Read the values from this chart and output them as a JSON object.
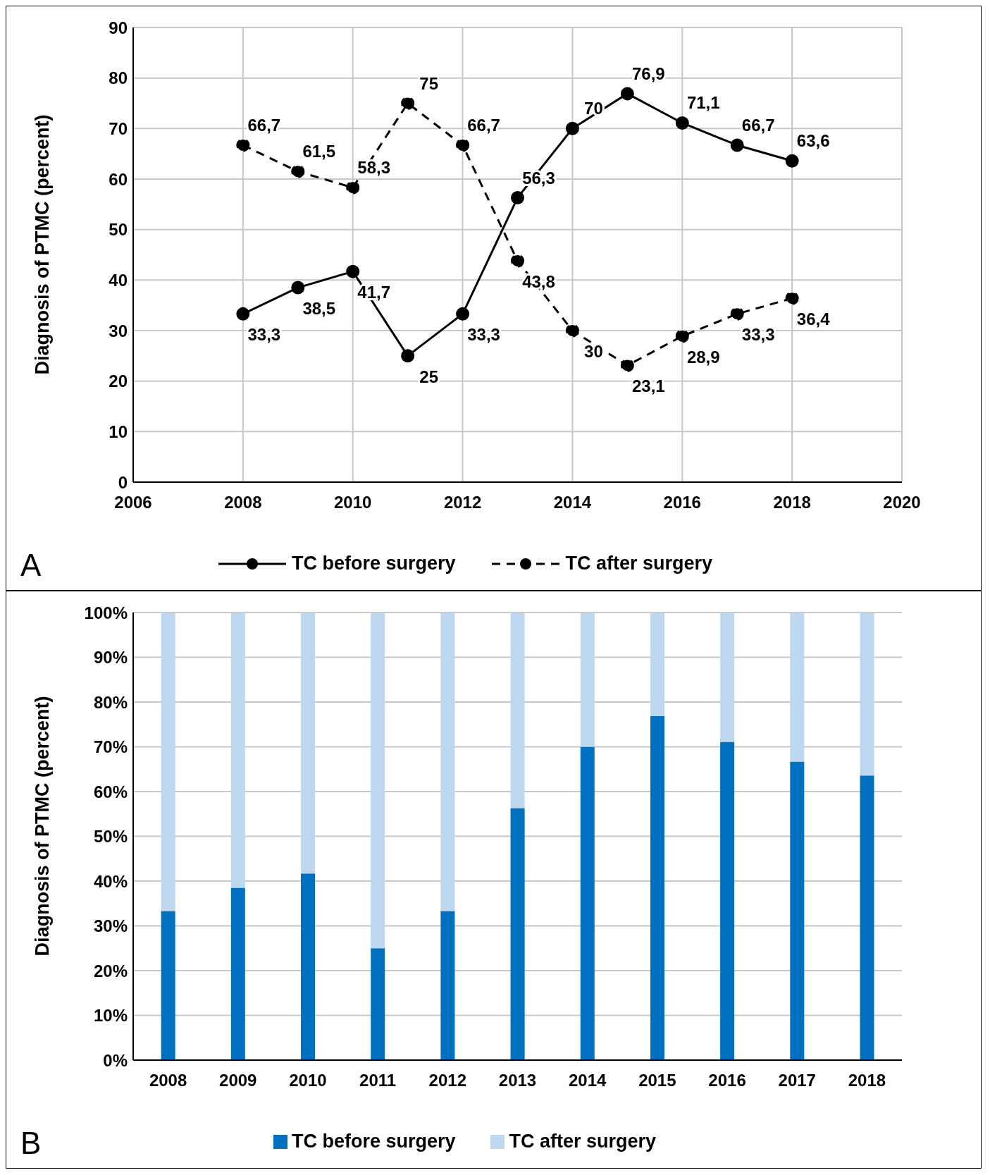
{
  "chart_data": [
    {
      "type": "line",
      "ylabel": "Diagnosis of PTMC (percent)",
      "x": [
        2008,
        2009,
        2010,
        2011,
        2012,
        2013,
        2014,
        2015,
        2016,
        2017,
        2018
      ],
      "xlim": [
        2006,
        2020
      ],
      "xticks": [
        2006,
        2008,
        2010,
        2012,
        2014,
        2016,
        2018,
        2020
      ],
      "ylim": [
        0,
        90
      ],
      "yticks": [
        0,
        10,
        20,
        30,
        40,
        50,
        60,
        70,
        80,
        90
      ],
      "grid": true,
      "legend": "bottom",
      "marker": "circle",
      "annotations": [
        "A"
      ],
      "series": [
        {
          "name": "TC before surgery",
          "color": "#000000",
          "line_style": "solid",
          "values": [
            33.3,
            38.5,
            41.7,
            25,
            33.3,
            56.3,
            70,
            76.9,
            71.1,
            66.7,
            63.6
          ],
          "value_labels": [
            "33,3",
            "38,5",
            "41,7",
            "25",
            "33,3",
            "56,3",
            "70",
            "76,9",
            "71,1",
            "66,7",
            "63,6"
          ]
        },
        {
          "name": "TC after surgery",
          "color": "#000000",
          "line_style": "dashed",
          "values": [
            66.7,
            61.5,
            58.3,
            75,
            66.7,
            43.8,
            30,
            23.1,
            28.9,
            33.3,
            36.4
          ],
          "value_labels": [
            "66,7",
            "61,5",
            "58,3",
            "75",
            "66,7",
            "43,8",
            "30",
            "23,1",
            "28,9",
            "33,3",
            "36,4"
          ]
        }
      ]
    },
    {
      "type": "bar",
      "stacked": true,
      "ylabel": "Diagnosis of PTMC (percent)",
      "categories": [
        "2008",
        "2009",
        "2010",
        "2011",
        "2012",
        "2013",
        "2014",
        "2015",
        "2016",
        "2017",
        "2018"
      ],
      "ylim": [
        0,
        100
      ],
      "yticks": [
        {
          "value": 0,
          "label": "0%"
        },
        {
          "value": 10,
          "label": "10%"
        },
        {
          "value": 20,
          "label": "20%"
        },
        {
          "value": 30,
          "label": "30%"
        },
        {
          "value": 40,
          "label": "40%"
        },
        {
          "value": 50,
          "label": "50%"
        },
        {
          "value": 60,
          "label": "60%"
        },
        {
          "value": 70,
          "label": "70%"
        },
        {
          "value": 80,
          "label": "80%"
        },
        {
          "value": 90,
          "label": "90%"
        },
        {
          "value": 100,
          "label": "100%"
        }
      ],
      "grid": "y",
      "legend": "bottom",
      "annotations": [
        "B"
      ],
      "series": [
        {
          "name": "TC before surgery",
          "color": "#0070c0",
          "values": [
            33.3,
            38.5,
            41.7,
            25,
            33.3,
            56.3,
            70,
            76.9,
            71.1,
            66.7,
            63.6
          ]
        },
        {
          "name": "TC after surgery",
          "color": "#bdd7ee",
          "values": [
            66.7,
            61.5,
            58.3,
            75,
            66.7,
            43.7,
            30,
            23.1,
            28.9,
            33.3,
            36.4
          ]
        }
      ]
    }
  ]
}
